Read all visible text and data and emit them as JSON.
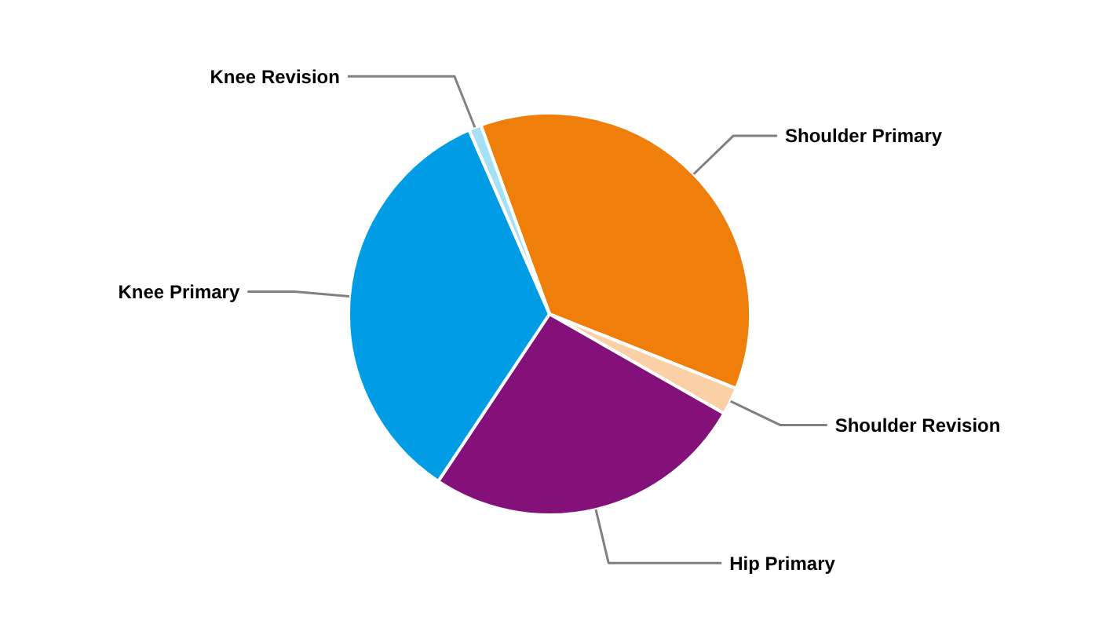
{
  "chart_data": {
    "type": "pie",
    "categories": [
      "Shoulder Primary",
      "Shoulder Revision",
      "Hip Primary",
      "Knee Primary",
      "Knee Revision"
    ],
    "values": [
      36.6,
      2.2,
      26.1,
      34.1,
      1.0
    ],
    "colors": [
      "#ef7f0a",
      "#fcd0a6",
      "#84107a",
      "#009de6",
      "#a6e0f7"
    ]
  }
}
